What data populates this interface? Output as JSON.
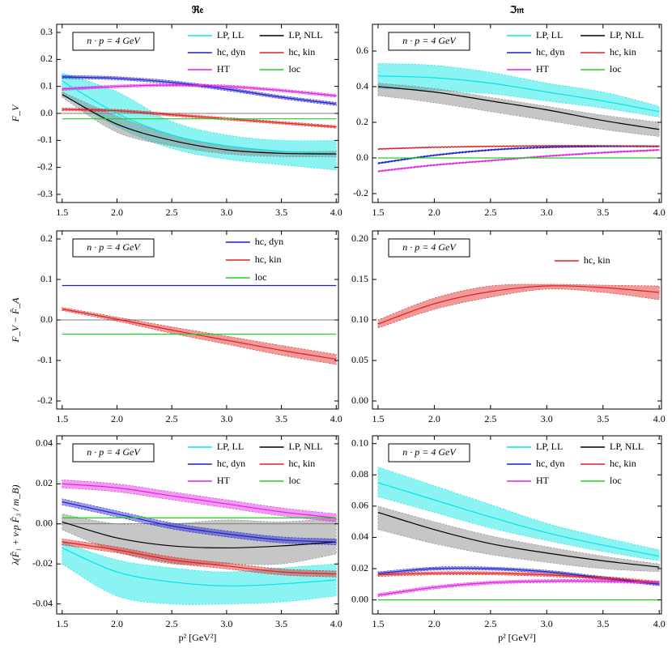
{
  "chart_data": [
    {
      "type": "line",
      "title": "ℜ𝔢",
      "y_label": "F_V",
      "annotation": "n · p = 4 GeV",
      "zero_line": true,
      "x": [
        1.5,
        2,
        2.5,
        3,
        3.5,
        4
      ],
      "xlim": [
        1.45,
        4.02
      ],
      "xticks": [
        1.5,
        {
          "value": 2,
          "label": "2.0"
        },
        2.5,
        {
          "value": 3,
          "label": "3.0"
        },
        3.5,
        {
          "value": 4,
          "label": "4.0"
        }
      ],
      "ylim": [
        -0.33,
        0.33
      ],
      "yticks": [
        -0.3,
        -0.2,
        -0.1,
        {
          "value": 0,
          "label": "0.0"
        },
        0.1,
        0.2,
        0.3
      ],
      "series": [
        {
          "name": "LP, LL",
          "color": "#00e5e5",
          "values": [
            0.12,
            0.0,
            -0.08,
            -0.12,
            -0.14,
            -0.15
          ],
          "lower": [
            0.07,
            -0.05,
            -0.13,
            -0.17,
            -0.19,
            -0.21
          ],
          "upper": [
            0.15,
            0.08,
            -0.03,
            -0.08,
            -0.1,
            -0.1
          ]
        },
        {
          "name": "LP, NLL",
          "color": "#000000",
          "values": [
            0.07,
            -0.04,
            -0.1,
            -0.135,
            -0.148,
            -0.15
          ],
          "lower": [
            0.06,
            -0.07,
            -0.12,
            -0.15,
            -0.16,
            -0.16
          ],
          "upper": [
            0.08,
            -0.01,
            -0.08,
            -0.12,
            -0.14,
            -0.14
          ]
        },
        {
          "name": "hc, dyn",
          "color": "#1f1fd0",
          "values": [
            0.135,
            0.13,
            0.115,
            0.09,
            0.06,
            0.035
          ],
          "lower": [
            0.129,
            0.124,
            0.109,
            0.084,
            0.054,
            0.029
          ],
          "upper": [
            0.141,
            0.136,
            0.121,
            0.096,
            0.066,
            0.041
          ]
        },
        {
          "name": "hc, kin",
          "color": "#e02020",
          "values": [
            0.015,
            0.01,
            -0.005,
            -0.02,
            -0.035,
            -0.05
          ],
          "lower": [
            0.01,
            0.005,
            -0.01,
            -0.025,
            -0.04,
            -0.055
          ],
          "upper": [
            0.02,
            0.015,
            0.0,
            -0.015,
            -0.03,
            -0.045
          ]
        },
        {
          "name": "HT",
          "color": "#e020e0",
          "values": [
            0.09,
            0.1,
            0.105,
            0.1,
            0.085,
            0.065
          ],
          "lower": [
            0.085,
            0.095,
            0.1,
            0.095,
            0.08,
            0.06
          ],
          "upper": [
            0.095,
            0.105,
            0.11,
            0.105,
            0.09,
            0.07
          ]
        },
        {
          "name": "loc",
          "color": "#20d020",
          "values": [
            -0.02,
            -0.02,
            -0.02,
            -0.02,
            -0.02,
            -0.02
          ]
        }
      ]
    },
    {
      "type": "line",
      "title": "ℑ𝔪",
      "annotation": "n · p = 4 GeV",
      "x": [
        1.5,
        2,
        2.5,
        3,
        3.5,
        4
      ],
      "xlim": [
        1.45,
        4.02
      ],
      "xticks": [
        1.5,
        {
          "value": 2,
          "label": "2.0"
        },
        2.5,
        {
          "value": 3,
          "label": "3.0"
        },
        3.5,
        {
          "value": 4,
          "label": "4.0"
        }
      ],
      "ylim": [
        -0.25,
        0.75
      ],
      "yticks": [
        -0.2,
        {
          "value": 0,
          "label": "0.0"
        },
        0.2,
        0.4,
        0.6
      ],
      "series": [
        {
          "name": "LP, LL",
          "color": "#00e5e5",
          "values": [
            0.46,
            0.45,
            0.42,
            0.37,
            0.32,
            0.26
          ],
          "lower": [
            0.39,
            0.38,
            0.36,
            0.32,
            0.28,
            0.23
          ],
          "upper": [
            0.53,
            0.52,
            0.48,
            0.42,
            0.37,
            0.29
          ]
        },
        {
          "name": "LP, NLL",
          "color": "#000000",
          "values": [
            0.4,
            0.37,
            0.32,
            0.27,
            0.21,
            0.16
          ],
          "lower": [
            0.35,
            0.31,
            0.26,
            0.21,
            0.16,
            0.12
          ],
          "upper": [
            0.42,
            0.39,
            0.34,
            0.29,
            0.24,
            0.2
          ]
        },
        {
          "name": "hc, dyn",
          "color": "#1f1fd0",
          "values": [
            -0.03,
            0.015,
            0.045,
            0.06,
            0.065,
            0.065
          ],
          "lower": [
            -0.034,
            0.011,
            0.041,
            0.056,
            0.061,
            0.061
          ],
          "upper": [
            -0.026,
            0.019,
            0.049,
            0.064,
            0.069,
            0.069
          ]
        },
        {
          "name": "hc, kin",
          "color": "#e02020",
          "values": [
            0.05,
            0.06,
            0.065,
            0.068,
            0.068,
            0.066
          ],
          "lower": [
            0.047,
            0.057,
            0.062,
            0.065,
            0.065,
            0.063
          ],
          "upper": [
            0.053,
            0.063,
            0.068,
            0.071,
            0.071,
            0.069
          ]
        },
        {
          "name": "HT",
          "color": "#e020e0",
          "values": [
            -0.075,
            -0.04,
            -0.015,
            0.01,
            0.03,
            0.045
          ],
          "lower": [
            -0.079,
            -0.044,
            -0.019,
            0.006,
            0.026,
            0.041
          ],
          "upper": [
            -0.071,
            -0.036,
            -0.011,
            0.014,
            0.034,
            0.049
          ]
        },
        {
          "name": "loc",
          "color": "#20d020",
          "values": [
            0,
            0,
            0,
            0,
            0,
            0
          ]
        }
      ]
    },
    {
      "type": "line",
      "y_label": "F_V − F̂_A",
      "annotation": "n · p = 4 GeV",
      "zero_line": true,
      "x": [
        1.5,
        2,
        2.5,
        3,
        3.5,
        4
      ],
      "xlim": [
        1.45,
        4.02
      ],
      "xticks": [
        1.5,
        {
          "value": 2,
          "label": "2.0"
        },
        2.5,
        {
          "value": 3,
          "label": "3.0"
        },
        3.5,
        {
          "value": 4,
          "label": "4.0"
        }
      ],
      "ylim": [
        -0.22,
        0.22
      ],
      "yticks": [
        -0.2,
        -0.1,
        {
          "value": 0,
          "label": "0.0"
        },
        0.1,
        0.2
      ],
      "series": [
        {
          "name": "hc, dyn",
          "color": "#1f1fd0",
          "values": [
            0.085,
            0.085,
            0.085,
            0.085,
            0.085,
            0.085
          ]
        },
        {
          "name": "hc, kin",
          "color": "#e02020",
          "values": [
            0.027,
            0.002,
            -0.025,
            -0.05,
            -0.075,
            -0.097
          ],
          "lower": [
            0.023,
            -0.003,
            -0.033,
            -0.06,
            -0.087,
            -0.11
          ],
          "upper": [
            0.031,
            0.007,
            -0.017,
            -0.04,
            -0.063,
            -0.085
          ]
        },
        {
          "name": "loc",
          "color": "#20d020",
          "values": [
            -0.035,
            -0.035,
            -0.035,
            -0.035,
            -0.035,
            -0.035
          ]
        }
      ]
    },
    {
      "type": "line",
      "annotation": "n · p = 4 GeV",
      "x": [
        1.5,
        2,
        2.5,
        3,
        3.5,
        4
      ],
      "xlim": [
        1.45,
        4.02
      ],
      "xticks": [
        1.5,
        {
          "value": 2,
          "label": "2.0"
        },
        2.5,
        {
          "value": 3,
          "label": "3.0"
        },
        3.5,
        {
          "value": 4,
          "label": "4.0"
        }
      ],
      "ylim": [
        -0.01,
        0.21
      ],
      "yticks": [
        {
          "value": 0,
          "label": "0.00"
        },
        0.05,
        {
          "value": 0.1,
          "label": "0.10"
        },
        0.15,
        {
          "value": 0.2,
          "label": "0.20"
        }
      ],
      "series": [
        {
          "name": "hc, kin",
          "color": "#e02020",
          "values": [
            0.095,
            0.12,
            0.135,
            0.142,
            0.14,
            0.134
          ],
          "lower": [
            0.09,
            0.113,
            0.128,
            0.138,
            0.134,
            0.125
          ],
          "upper": [
            0.1,
            0.127,
            0.142,
            0.144,
            0.143,
            0.142
          ]
        }
      ]
    },
    {
      "type": "line",
      "y_label": "λ(F̂₁ + v·p F̂₃ / m_B)",
      "x_label": "p² [GeV²]",
      "annotation": "n · p = 4 GeV",
      "zero_line": true,
      "x": [
        1.5,
        2,
        2.5,
        3,
        3.5,
        4
      ],
      "xlim": [
        1.45,
        4.02
      ],
      "xticks": [
        1.5,
        {
          "value": 2,
          "label": "2.0"
        },
        2.5,
        {
          "value": 3,
          "label": "3.0"
        },
        3.5,
        {
          "value": 4,
          "label": "4.0"
        }
      ],
      "ylim": [
        -0.045,
        0.044
      ],
      "yticks": [
        -0.04,
        -0.02,
        {
          "value": 0,
          "label": "0.00"
        },
        0.02,
        0.04
      ],
      "series": [
        {
          "name": "LP, LL",
          "color": "#00e5e5",
          "values": [
            -0.012,
            -0.024,
            -0.029,
            -0.031,
            -0.03,
            -0.028
          ],
          "lower": [
            -0.02,
            -0.036,
            -0.04,
            -0.04,
            -0.039,
            -0.036
          ],
          "upper": [
            -0.009,
            -0.018,
            -0.022,
            -0.024,
            -0.022,
            -0.02
          ]
        },
        {
          "name": "LP, NLL",
          "color": "#000000",
          "values": [
            0.001,
            -0.007,
            -0.011,
            -0.012,
            -0.011,
            -0.009
          ],
          "lower": [
            -0.003,
            -0.014,
            -0.02,
            -0.02,
            -0.02,
            -0.015
          ],
          "upper": [
            0.005,
            0.0,
            0.0,
            0.002,
            0.001,
            0.003
          ]
        },
        {
          "name": "hc, dyn",
          "color": "#1f1fd0",
          "values": [
            0.011,
            0.005,
            -0.001,
            -0.005,
            -0.008,
            -0.009
          ],
          "lower": [
            0.0095,
            0.0035,
            -0.0025,
            -0.0065,
            -0.0095,
            -0.0105
          ],
          "upper": [
            0.0125,
            0.0065,
            0.0005,
            -0.0035,
            -0.0065,
            -0.0075
          ]
        },
        {
          "name": "hc, kin",
          "color": "#e02020",
          "values": [
            -0.009,
            -0.013,
            -0.018,
            -0.021,
            -0.024,
            -0.025
          ],
          "lower": [
            -0.0105,
            -0.0145,
            -0.0195,
            -0.0225,
            -0.0255,
            -0.0265
          ],
          "upper": [
            -0.0075,
            -0.0115,
            -0.0165,
            -0.0195,
            -0.0225,
            -0.0235
          ]
        },
        {
          "name": "HT",
          "color": "#e020e0",
          "values": [
            0.02,
            0.018,
            0.014,
            0.01,
            0.006,
            0.003
          ],
          "lower": [
            0.018,
            0.016,
            0.012,
            0.008,
            0.004,
            0.001
          ],
          "upper": [
            0.022,
            0.02,
            0.016,
            0.012,
            0.008,
            0.005
          ]
        },
        {
          "name": "loc",
          "color": "#20d020",
          "values": [
            0.003,
            0.003,
            0.003,
            0.003,
            0.003,
            0.003
          ]
        }
      ]
    },
    {
      "type": "line",
      "x_label": "p² [GeV²]",
      "annotation": "n · p = 4 GeV",
      "x": [
        1.5,
        2,
        2.5,
        3,
        3.5,
        4
      ],
      "xlim": [
        1.45,
        4.02
      ],
      "xticks": [
        1.5,
        {
          "value": 2,
          "label": "2.0"
        },
        2.5,
        {
          "value": 3,
          "label": "3.0"
        },
        3.5,
        {
          "value": 4,
          "label": "4.0"
        }
      ],
      "ylim": [
        -0.009,
        0.105
      ],
      "yticks": [
        {
          "value": 0,
          "label": "0.00"
        },
        0.02,
        0.04,
        0.06,
        0.08,
        {
          "value": 0.1,
          "label": "0.10"
        }
      ],
      "series": [
        {
          "name": "LP, LL",
          "color": "#00e5e5",
          "values": [
            0.075,
            0.064,
            0.053,
            0.043,
            0.035,
            0.028
          ],
          "lower": [
            0.066,
            0.056,
            0.046,
            0.038,
            0.031,
            0.025
          ],
          "upper": [
            0.085,
            0.073,
            0.061,
            0.049,
            0.04,
            0.032
          ]
        },
        {
          "name": "LP, NLL",
          "color": "#000000",
          "values": [
            0.056,
            0.045,
            0.036,
            0.03,
            0.025,
            0.021
          ],
          "lower": [
            0.045,
            0.036,
            0.029,
            0.024,
            0.02,
            0.018
          ],
          "upper": [
            0.06,
            0.05,
            0.041,
            0.034,
            0.028,
            0.023
          ]
        },
        {
          "name": "hc, dyn",
          "color": "#1f1fd0",
          "values": [
            0.017,
            0.02,
            0.02,
            0.018,
            0.014,
            0.01
          ],
          "lower": [
            0.016,
            0.019,
            0.019,
            0.017,
            0.013,
            0.009
          ],
          "upper": [
            0.018,
            0.021,
            0.021,
            0.019,
            0.015,
            0.011
          ]
        },
        {
          "name": "hc, kin",
          "color": "#e02020",
          "values": [
            0.016,
            0.017,
            0.017,
            0.016,
            0.014,
            0.011
          ],
          "lower": [
            0.015,
            0.016,
            0.016,
            0.015,
            0.013,
            0.01
          ],
          "upper": [
            0.017,
            0.018,
            0.018,
            0.017,
            0.015,
            0.012
          ]
        },
        {
          "name": "HT",
          "color": "#e020e0",
          "values": [
            0.003,
            0.008,
            0.011,
            0.012,
            0.012,
            0.011
          ],
          "lower": [
            0.002,
            0.007,
            0.01,
            0.011,
            0.011,
            0.01
          ],
          "upper": [
            0.004,
            0.009,
            0.012,
            0.013,
            0.013,
            0.012
          ]
        },
        {
          "name": "loc",
          "color": "#20d020",
          "values": [
            0,
            0,
            0,
            0,
            0,
            0
          ]
        }
      ]
    }
  ]
}
